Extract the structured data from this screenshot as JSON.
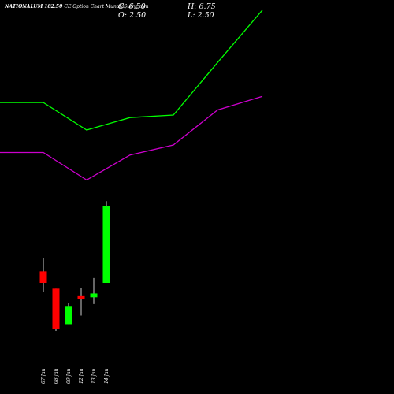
{
  "header": {
    "symbol": "NATIONALUM 182.50",
    "subtitle": "CE Option Chart MunafaSutra.com",
    "close": "C: 6.50",
    "open": "O: 2.50",
    "high": "H: 6.75",
    "low": "L: 2.50"
  },
  "colors": {
    "background": "#000000",
    "upper_band": "#00ff00",
    "lower_band": "#cc00cc",
    "bull": "#00ff00",
    "bear": "#ff0000"
  },
  "chart_data": {
    "type": "candlestick",
    "title": "NATIONALUM 182.50 CE Option Chart MunafaSutra.com",
    "categories": [
      "07 Jan",
      "08 Jan",
      "09 Jan",
      "12 Jan",
      "13 Jan",
      "14 Jan"
    ],
    "candles": [
      {
        "date": "07 Jan",
        "open": 3.1,
        "high": 3.8,
        "low": 2.05,
        "close": 2.5
      },
      {
        "date": "08 Jan",
        "open": 2.2,
        "high": 2.2,
        "low": 0.0,
        "close": 0.12
      },
      {
        "date": "09 Jan",
        "open": 0.35,
        "high": 1.45,
        "low": 0.35,
        "close": 1.3
      },
      {
        "date": "12 Jan",
        "open": 1.85,
        "high": 2.25,
        "low": 0.8,
        "close": 1.65
      },
      {
        "date": "13 Jan",
        "open": 1.75,
        "high": 2.75,
        "low": 1.4,
        "close": 1.95
      },
      {
        "date": "14 Jan",
        "open": 2.5,
        "high": 6.75,
        "low": 2.5,
        "close": 6.5
      }
    ],
    "overlay_series": [
      {
        "color": "#00ff00",
        "x": [
          "-",
          "07 Jan",
          "09 Jan",
          "12 Jan",
          "13 Jan",
          "14 Jan"
        ],
        "values": [
          11.1,
          11.1,
          10.0,
          10.5,
          10.6,
          12.7
        ]
      },
      {
        "color": "#cc00cc",
        "x": [
          "-",
          "07 Jan",
          "09 Jan",
          "12 Jan",
          "13 Jan",
          "14 Jan"
        ],
        "values": [
          9.1,
          9.1,
          8.0,
          9.0,
          9.4,
          10.8
        ]
      }
    ],
    "ylim": [
      0,
      15
    ],
    "grid": false,
    "legend": "none"
  }
}
